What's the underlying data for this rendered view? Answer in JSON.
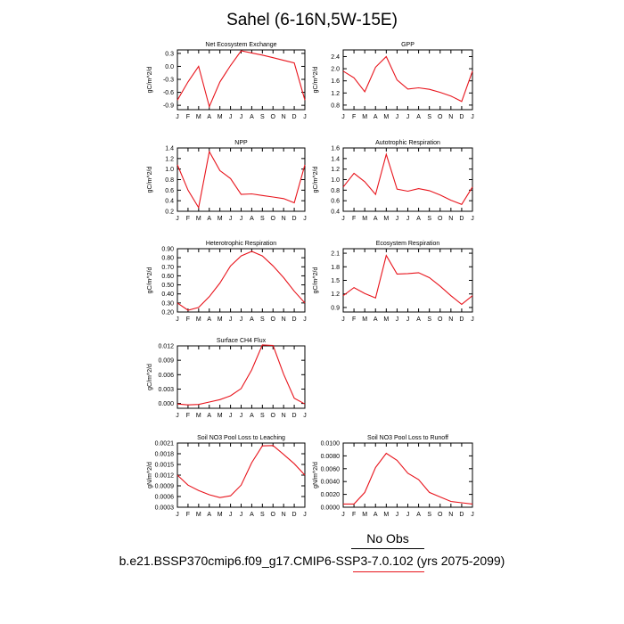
{
  "page": {
    "title": "Sahel (6-16N,5W-15E)",
    "no_obs_label": "No Obs",
    "case_label": "b.e21.BSSP370cmip6.f09_g17.CMIP6-SSP3-7.0.102 (yrs 2075-2099)",
    "line_color": "#e8141c"
  },
  "chart_data": [
    {
      "type": "line",
      "title": "Net Ecosystem Exchange",
      "ylabel": "gC/m^2/d",
      "x": [
        "J",
        "F",
        "M",
        "A",
        "M",
        "J",
        "J",
        "A",
        "S",
        "O",
        "N",
        "D",
        "J"
      ],
      "y": [
        -0.78,
        -0.36,
        0.0,
        -0.93,
        -0.36,
        0.02,
        0.36,
        0.31,
        0.26,
        0.2,
        0.14,
        0.08,
        -0.78
      ],
      "ylim": [
        -1.0,
        0.38
      ],
      "yticks": [
        0.3,
        0.0,
        -0.3,
        -0.6,
        -0.9
      ],
      "yticklabels": [
        "0.3",
        "0.0",
        "-0.3",
        "-0.6",
        "-0.9"
      ]
    },
    {
      "type": "line",
      "title": "GPP",
      "ylabel": "gC/m^2/d",
      "x": [
        "J",
        "F",
        "M",
        "A",
        "M",
        "J",
        "J",
        "A",
        "S",
        "O",
        "N",
        "D",
        "J"
      ],
      "y": [
        1.92,
        1.7,
        1.24,
        2.05,
        2.4,
        1.63,
        1.33,
        1.37,
        1.32,
        1.22,
        1.1,
        0.92,
        1.92
      ],
      "ylim": [
        0.65,
        2.62
      ],
      "yticks": [
        2.4,
        2.0,
        1.6,
        1.2,
        0.8
      ],
      "yticklabels": [
        "2.4",
        "2.0",
        "1.6",
        "1.2",
        "0.8"
      ]
    },
    {
      "type": "line",
      "title": "NPP",
      "ylabel": "gC/m^2/d",
      "x": [
        "J",
        "F",
        "M",
        "A",
        "M",
        "J",
        "J",
        "A",
        "S",
        "O",
        "N",
        "D",
        "J"
      ],
      "y": [
        1.08,
        0.6,
        0.27,
        1.33,
        0.97,
        0.82,
        0.52,
        0.53,
        0.5,
        0.47,
        0.44,
        0.36,
        1.08
      ],
      "ylim": [
        0.2,
        1.4
      ],
      "yticks": [
        1.4,
        1.2,
        1.0,
        0.8,
        0.6,
        0.4,
        0.2
      ],
      "yticklabels": [
        "1.4",
        "1.2",
        "1.0",
        "0.8",
        "0.6",
        "0.4",
        "0.2"
      ]
    },
    {
      "type": "line",
      "title": "Autotrophic Respiration",
      "ylabel": "gC/m^2/d",
      "x": [
        "J",
        "F",
        "M",
        "A",
        "M",
        "J",
        "J",
        "A",
        "S",
        "O",
        "N",
        "D",
        "J"
      ],
      "y": [
        0.86,
        1.12,
        0.96,
        0.72,
        1.48,
        0.82,
        0.78,
        0.83,
        0.79,
        0.71,
        0.61,
        0.53,
        0.86
      ],
      "ylim": [
        0.4,
        1.6
      ],
      "yticks": [
        1.6,
        1.4,
        1.2,
        1.0,
        0.8,
        0.6,
        0.4
      ],
      "yticklabels": [
        "1.6",
        "1.4",
        "1.2",
        "1.0",
        "0.8",
        "0.6",
        "0.4"
      ]
    },
    {
      "type": "line",
      "title": "Heterotrophic Respiration",
      "ylabel": "gC/m^2/d",
      "x": [
        "J",
        "F",
        "M",
        "A",
        "M",
        "J",
        "J",
        "A",
        "S",
        "O",
        "N",
        "D",
        "J"
      ],
      "y": [
        0.3,
        0.22,
        0.25,
        0.37,
        0.52,
        0.71,
        0.82,
        0.87,
        0.82,
        0.71,
        0.58,
        0.43,
        0.3
      ],
      "ylim": [
        0.2,
        0.9
      ],
      "yticks": [
        0.9,
        0.8,
        0.7,
        0.6,
        0.5,
        0.4,
        0.3,
        0.2
      ],
      "yticklabels": [
        "0.90",
        "0.80",
        "0.70",
        "0.60",
        "0.50",
        "0.40",
        "0.30",
        "0.20"
      ]
    },
    {
      "type": "line",
      "title": "Ecosystem Respiration",
      "ylabel": "gC/m^2/d",
      "x": [
        "J",
        "F",
        "M",
        "A",
        "M",
        "J",
        "J",
        "A",
        "S",
        "O",
        "N",
        "D",
        "J"
      ],
      "y": [
        1.16,
        1.34,
        1.21,
        1.11,
        2.05,
        1.64,
        1.65,
        1.67,
        1.56,
        1.37,
        1.16,
        0.97,
        1.16
      ],
      "ylim": [
        0.8,
        2.2
      ],
      "yticks": [
        2.1,
        1.8,
        1.5,
        1.2,
        0.9
      ],
      "yticklabels": [
        "2.1",
        "1.8",
        "1.5",
        "1.2",
        "0.9"
      ]
    },
    {
      "type": "line",
      "title": "Surface CH4 Flux",
      "ylabel": "gC/m^2/d",
      "x": [
        "J",
        "F",
        "M",
        "A",
        "M",
        "J",
        "J",
        "A",
        "S",
        "O",
        "N",
        "D",
        "J"
      ],
      "y": [
        -0.0001,
        -0.0003,
        -0.0002,
        0.0003,
        0.0008,
        0.0016,
        0.0031,
        0.007,
        0.0122,
        0.0121,
        0.0061,
        0.0011,
        -0.0001
      ],
      "ylim": [
        -0.001,
        0.012
      ],
      "yticks": [
        0.012,
        0.009,
        0.006,
        0.003,
        0.0
      ],
      "yticklabels": [
        "0.012",
        "0.009",
        "0.006",
        "0.003",
        "0.000"
      ]
    },
    {
      "type": "line",
      "title": "Soil NO3 Pool Loss to Leaching",
      "ylabel": "gN/m^2/d",
      "x": [
        "J",
        "F",
        "M",
        "A",
        "M",
        "J",
        "J",
        "A",
        "S",
        "O",
        "N",
        "D",
        "J"
      ],
      "y": [
        0.0012,
        0.00092,
        0.00077,
        0.00065,
        0.00057,
        0.00062,
        0.00092,
        0.00155,
        0.00202,
        0.00203,
        0.00178,
        0.00152,
        0.0012
      ],
      "ylim": [
        0.0003,
        0.0021
      ],
      "yticks": [
        0.0021,
        0.0018,
        0.0015,
        0.0012,
        0.0009,
        0.0006,
        0.0003
      ],
      "yticklabels": [
        "0.0021",
        "0.0018",
        "0.0015",
        "0.0012",
        "0.0009",
        "0.0006",
        "0.0003"
      ]
    },
    {
      "type": "line",
      "title": "Soil NO3 Pool Loss to Runoff",
      "ylabel": "gN/m^2/d",
      "x": [
        "J",
        "F",
        "M",
        "A",
        "M",
        "J",
        "J",
        "A",
        "S",
        "O",
        "N",
        "D",
        "J"
      ],
      "y": [
        0.0005,
        0.0005,
        0.0023,
        0.0062,
        0.0084,
        0.0073,
        0.0053,
        0.0043,
        0.0023,
        0.0016,
        0.0009,
        0.0007,
        0.0005
      ],
      "ylim": [
        0.0,
        0.01
      ],
      "yticks": [
        0.01,
        0.008,
        0.006,
        0.004,
        0.002,
        0.0
      ],
      "yticklabels": [
        "0.0100",
        "0.0080",
        "0.0060",
        "0.0040",
        "0.0020",
        "0.0000"
      ]
    }
  ]
}
